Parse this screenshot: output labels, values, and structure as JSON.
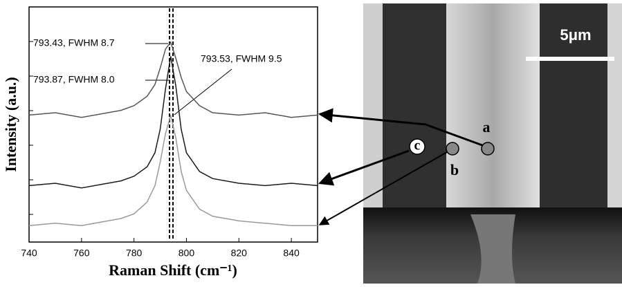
{
  "chart_data": {
    "type": "line",
    "x_label": "Raman Shift (cm⁻¹)",
    "y_label": "Intensity (a.u.)",
    "x": [
      740,
      750,
      760,
      770,
      775,
      780,
      785,
      788,
      790,
      792,
      794,
      796,
      798,
      800,
      805,
      810,
      820,
      830,
      840,
      850
    ],
    "series": [
      {
        "color": "#555555",
        "values": [
          54,
          55,
          53,
          55,
          56,
          58,
          62,
          67,
          74,
          82,
          85,
          78,
          70,
          64,
          58,
          55,
          54,
          55,
          53,
          54
        ]
      },
      {
        "color": "#1a1a1a",
        "values": [
          24,
          25,
          23,
          25,
          26,
          28,
          32,
          38,
          48,
          65,
          79,
          66,
          48,
          38,
          30,
          27,
          25,
          24,
          25,
          24
        ]
      },
      {
        "color": "#999999",
        "values": [
          7,
          8,
          7,
          9,
          10,
          12,
          17,
          24,
          34,
          46,
          54,
          44,
          30,
          22,
          14,
          11,
          9,
          8,
          7,
          7
        ]
      }
    ],
    "annotations": [
      "793.43, FWHM 8.7",
      "793.87, FWHM 8.0",
      "793.53, FWHM 9.5"
    ],
    "xlim": [
      740,
      850
    ],
    "ylim": [
      0,
      100
    ],
    "xticks": [
      740,
      760,
      780,
      800,
      820,
      840
    ]
  },
  "image": {
    "scale_bar": "5μm",
    "labels": [
      "a",
      "b",
      "c"
    ]
  }
}
